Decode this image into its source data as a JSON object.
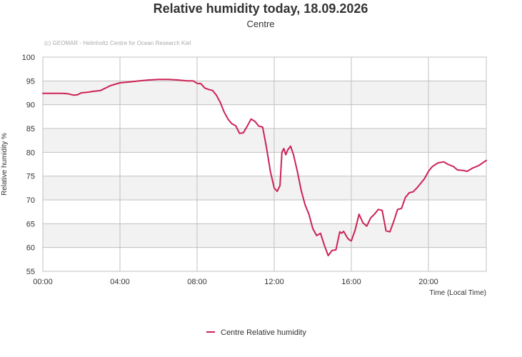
{
  "chart_data": {
    "type": "line",
    "title": "Relative humidity today, 18.09.2026",
    "subtitle": "Centre",
    "credit": "(c) GEOMAR - Helmholtz Centre for Ocean Research Kiel",
    "xlabel": "Time (Local Time)",
    "ylabel": "Relative humidity %",
    "x_ticks": [
      "00:00",
      "04:00",
      "08:00",
      "12:00",
      "16:00",
      "20:00"
    ],
    "y_ticks": [
      "55",
      "60",
      "65",
      "70",
      "75",
      "80",
      "85",
      "90",
      "95",
      "100"
    ],
    "xlim": [
      0,
      23
    ],
    "ylim": [
      55,
      100
    ],
    "grid": true,
    "band_color": "#f2f2f2",
    "grid_color": "#c0c0c0",
    "legend_position": "bottom-center",
    "series": [
      {
        "name": "Centre Relative humidity",
        "color": "#cc2255",
        "x": [
          0,
          0.5,
          1.0,
          1.3,
          1.6,
          1.8,
          2.0,
          2.3,
          2.6,
          3.0,
          3.5,
          4.0,
          4.5,
          5.0,
          5.5,
          6.0,
          6.5,
          7.0,
          7.5,
          7.8,
          8.0,
          8.2,
          8.4,
          8.6,
          8.8,
          9.0,
          9.2,
          9.4,
          9.6,
          9.8,
          10.0,
          10.2,
          10.4,
          10.6,
          10.8,
          11.0,
          11.2,
          11.4,
          11.6,
          11.8,
          12.0,
          12.15,
          12.3,
          12.4,
          12.5,
          12.6,
          12.7,
          12.85,
          13.0,
          13.2,
          13.4,
          13.6,
          13.8,
          14.0,
          14.2,
          14.4,
          14.6,
          14.8,
          15.0,
          15.2,
          15.4,
          15.5,
          15.6,
          15.8,
          15.9,
          16.0,
          16.2,
          16.4,
          16.6,
          16.8,
          17.0,
          17.2,
          17.4,
          17.6,
          17.8,
          18.0,
          18.2,
          18.4,
          18.6,
          18.8,
          19.0,
          19.2,
          19.4,
          19.6,
          19.8,
          20.0,
          20.2,
          20.5,
          20.8,
          21.0,
          21.3,
          21.5,
          21.8,
          22.0,
          22.3,
          22.6,
          23.0
        ],
        "values": [
          92.4,
          92.4,
          92.4,
          92.3,
          92.0,
          92.1,
          92.5,
          92.6,
          92.8,
          93.0,
          94.0,
          94.6,
          94.8,
          95.0,
          95.2,
          95.3,
          95.3,
          95.2,
          95.0,
          95.0,
          94.5,
          94.4,
          93.5,
          93.2,
          93.0,
          92.0,
          90.5,
          88.5,
          87.0,
          86.0,
          85.6,
          84.0,
          84.1,
          85.5,
          87.0,
          86.5,
          85.5,
          85.3,
          81.0,
          76.0,
          72.5,
          71.8,
          73.0,
          80.0,
          80.8,
          79.5,
          80.5,
          81.3,
          79.5,
          76.0,
          72.0,
          69.0,
          67.0,
          64.0,
          62.5,
          63.0,
          60.5,
          58.3,
          59.4,
          59.5,
          63.3,
          63.0,
          63.4,
          62.0,
          61.6,
          61.4,
          63.7,
          67.0,
          65.2,
          64.5,
          66.2,
          67.0,
          68.0,
          67.8,
          63.5,
          63.3,
          65.5,
          68.0,
          68.2,
          70.5,
          71.5,
          71.7,
          72.5,
          73.5,
          74.5,
          76.0,
          77.0,
          77.8,
          78.0,
          77.5,
          77.0,
          76.3,
          76.2,
          76.0,
          76.7,
          77.2,
          78.3
        ]
      }
    ]
  }
}
